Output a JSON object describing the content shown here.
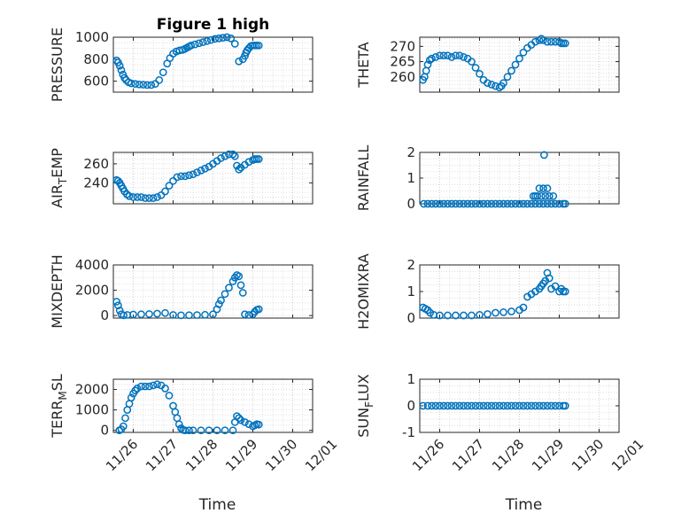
{
  "figure_title": "Figure 1 high",
  "colors": {
    "marker": "#0072BD",
    "axes": "#262626",
    "grid": "#cfcfcf"
  },
  "chart_data": [
    {
      "type": "scatter",
      "title": "Figure 1 high",
      "ylabel": "PRESSURE",
      "ylim": [
        500,
        1000
      ],
      "yticks": [
        600,
        800,
        1000
      ],
      "xlim": [
        0,
        5
      ],
      "xticks": [
        0.5,
        1.5,
        2.5,
        3.5,
        4.5,
        5.5
      ],
      "xticklabels": [],
      "grid": true,
      "x": [
        0.08,
        0.12,
        0.16,
        0.2,
        0.24,
        0.28,
        0.32,
        0.38,
        0.45,
        0.55,
        0.65,
        0.75,
        0.85,
        0.95,
        1.05,
        1.15,
        1.25,
        1.35,
        1.42,
        1.5,
        1.58,
        1.66,
        1.74,
        1.8,
        1.85,
        1.9,
        1.95,
        2.05,
        2.15,
        2.25,
        2.35,
        2.45,
        2.55,
        2.65,
        2.75,
        2.85,
        2.95,
        3.05,
        3.15,
        3.25,
        3.3,
        3.33,
        3.36,
        3.4,
        3.45,
        3.5,
        3.55,
        3.6,
        3.65
      ],
      "y": [
        790,
        770,
        740,
        700,
        660,
        630,
        610,
        590,
        580,
        575,
        570,
        568,
        565,
        565,
        575,
        610,
        680,
        760,
        810,
        850,
        870,
        880,
        885,
        895,
        905,
        915,
        925,
        935,
        945,
        955,
        965,
        975,
        985,
        990,
        995,
        1000,
        990,
        940,
        780,
        800,
        830,
        860,
        880,
        900,
        920,
        925,
        925,
        925,
        925
      ]
    },
    {
      "type": "scatter",
      "title": "",
      "ylabel": "THETA",
      "ylim": [
        255,
        273
      ],
      "yticks": [
        260,
        265,
        270
      ],
      "xlim": [
        0,
        5
      ],
      "xticks": [
        0.5,
        1.5,
        2.5,
        3.5,
        4.5,
        5.5
      ],
      "xticklabels": [],
      "grid": true,
      "x": [
        0.08,
        0.12,
        0.16,
        0.2,
        0.25,
        0.3,
        0.4,
        0.5,
        0.6,
        0.7,
        0.8,
        0.9,
        1.0,
        1.1,
        1.2,
        1.3,
        1.4,
        1.5,
        1.6,
        1.7,
        1.8,
        1.9,
        2.0,
        2.05,
        2.1,
        2.2,
        2.3,
        2.4,
        2.5,
        2.6,
        2.7,
        2.8,
        2.9,
        3.0,
        3.05,
        3.1,
        3.2,
        3.3,
        3.4,
        3.5,
        3.55,
        3.6,
        3.65
      ],
      "y": [
        259,
        260,
        262,
        264,
        265.5,
        266,
        266.5,
        267,
        267,
        267,
        266.5,
        267,
        267,
        266.5,
        266,
        265,
        263,
        261,
        259,
        258,
        257.5,
        257,
        256.5,
        257,
        258,
        260,
        262,
        264,
        266,
        268,
        269.5,
        270.5,
        271.5,
        272,
        272.5,
        272,
        271.5,
        271.5,
        271.5,
        271.5,
        271,
        271,
        271
      ]
    },
    {
      "type": "scatter",
      "title": "",
      "ylabel": "AIR_TEMP",
      "ylim": [
        218,
        272
      ],
      "yticks": [
        240,
        260
      ],
      "xlim": [
        0,
        5
      ],
      "xticks": [
        0.5,
        1.5,
        2.5,
        3.5,
        4.5,
        5.5
      ],
      "xticklabels": [],
      "grid": true,
      "x": [
        0.08,
        0.12,
        0.16,
        0.2,
        0.24,
        0.28,
        0.34,
        0.4,
        0.5,
        0.6,
        0.7,
        0.8,
        0.9,
        1.0,
        1.1,
        1.2,
        1.3,
        1.4,
        1.5,
        1.6,
        1.7,
        1.8,
        1.9,
        2.0,
        2.1,
        2.2,
        2.3,
        2.4,
        2.5,
        2.6,
        2.7,
        2.8,
        2.9,
        3.0,
        3.05,
        3.1,
        3.15,
        3.2,
        3.3,
        3.4,
        3.5,
        3.55,
        3.6,
        3.65
      ],
      "y": [
        243,
        242,
        240,
        237,
        234,
        231,
        228,
        226,
        225,
        225,
        225,
        224,
        224,
        224,
        225,
        227,
        231,
        237,
        242,
        246,
        247,
        247,
        248,
        249,
        251,
        253,
        255,
        257,
        260,
        263,
        266,
        268,
        270,
        270,
        268,
        258,
        254,
        256,
        259,
        262,
        264,
        265,
        265,
        265
      ]
    },
    {
      "type": "scatter",
      "title": "",
      "ylabel": "RAINFALL",
      "ylim": [
        0,
        2
      ],
      "yticks": [
        0,
        1,
        2
      ],
      "xlim": [
        0,
        5
      ],
      "xticks": [
        0.5,
        1.5,
        2.5,
        3.5,
        4.5,
        5.5
      ],
      "xticklabels": [],
      "grid": true,
      "x": [
        0.1,
        0.2,
        0.3,
        0.4,
        0.5,
        0.6,
        0.7,
        0.8,
        0.9,
        1.0,
        1.1,
        1.2,
        1.3,
        1.4,
        1.5,
        1.6,
        1.7,
        1.8,
        1.9,
        2.0,
        2.1,
        2.2,
        2.3,
        2.4,
        2.5,
        2.6,
        2.7,
        2.8,
        2.9,
        3.0,
        3.1,
        3.2,
        3.3,
        3.4,
        3.5,
        3.6,
        3.65,
        2.85,
        2.9,
        2.95,
        3.0,
        3.05,
        3.1,
        3.15,
        3.2,
        3.25,
        3.12,
        3.35
      ],
      "y": [
        0,
        0,
        0,
        0,
        0,
        0,
        0,
        0,
        0,
        0,
        0,
        0,
        0,
        0,
        0,
        0,
        0,
        0,
        0,
        0,
        0,
        0,
        0,
        0,
        0,
        0,
        0,
        0,
        0,
        0,
        0,
        0,
        0,
        0,
        0,
        0,
        0,
        0.3,
        0.3,
        0.3,
        0.6,
        0.3,
        0.6,
        0.3,
        0.6,
        0.3,
        1.9,
        0.3
      ]
    },
    {
      "type": "scatter",
      "title": "",
      "ylabel": "MIXDEPTH",
      "ylim": [
        -200,
        4000
      ],
      "yticks": [
        0,
        2000,
        4000
      ],
      "xlim": [
        0,
        5
      ],
      "xticks": [
        0.5,
        1.5,
        2.5,
        3.5,
        4.5,
        5.5
      ],
      "xticklabels": [],
      "grid": true,
      "x": [
        0.08,
        0.12,
        0.16,
        0.2,
        0.26,
        0.35,
        0.5,
        0.7,
        0.9,
        1.1,
        1.3,
        1.5,
        1.7,
        1.9,
        2.1,
        2.3,
        2.5,
        2.6,
        2.65,
        2.7,
        2.8,
        2.9,
        3.0,
        3.05,
        3.1,
        3.15,
        3.2,
        3.25,
        3.3,
        3.4,
        3.5,
        3.55,
        3.6,
        3.65
      ],
      "y": [
        1100,
        800,
        400,
        100,
        20,
        50,
        80,
        100,
        120,
        150,
        200,
        50,
        20,
        30,
        40,
        60,
        100,
        500,
        900,
        1200,
        1700,
        2200,
        2700,
        3000,
        3200,
        3100,
        2400,
        1800,
        100,
        50,
        100,
        300,
        450,
        500
      ]
    },
    {
      "type": "scatter",
      "title": "",
      "ylabel": "H2OMIXRA",
      "ylim": [
        0,
        2
      ],
      "yticks": [
        0,
        1,
        2
      ],
      "xlim": [
        0,
        5
      ],
      "xticks": [
        0.5,
        1.5,
        2.5,
        3.5,
        4.5,
        5.5
      ],
      "xticklabels": [],
      "grid": true,
      "x": [
        0.08,
        0.14,
        0.2,
        0.26,
        0.35,
        0.5,
        0.7,
        0.9,
        1.1,
        1.3,
        1.5,
        1.7,
        1.9,
        2.1,
        2.3,
        2.5,
        2.6,
        2.7,
        2.8,
        2.9,
        3.0,
        3.05,
        3.1,
        3.15,
        3.2,
        3.25,
        3.3,
        3.4,
        3.5,
        3.55,
        3.6,
        3.65
      ],
      "y": [
        0.4,
        0.35,
        0.3,
        0.2,
        0.12,
        0.1,
        0.1,
        0.1,
        0.1,
        0.1,
        0.12,
        0.15,
        0.2,
        0.22,
        0.25,
        0.3,
        0.4,
        0.8,
        0.9,
        1.0,
        1.1,
        1.2,
        1.3,
        1.4,
        1.7,
        1.5,
        1.1,
        1.2,
        1.0,
        1.1,
        1.0,
        1.0
      ]
    },
    {
      "type": "scatter",
      "title": "",
      "ylabel": "TERR_MSL",
      "ylim": [
        -100,
        2500
      ],
      "yticks": [
        0,
        1000,
        2000
      ],
      "xlim": [
        0,
        5
      ],
      "xticks": [
        0.5,
        1.5,
        2.5,
        3.5,
        4.5,
        5.5
      ],
      "xticklabels": [
        "11/26",
        "11/27",
        "11/28",
        "11/29",
        "11/30",
        "12/01"
      ],
      "xlabel": "Time",
      "grid": true,
      "x": [
        0.15,
        0.2,
        0.25,
        0.3,
        0.35,
        0.4,
        0.45,
        0.5,
        0.55,
        0.6,
        0.7,
        0.8,
        0.9,
        1.0,
        1.1,
        1.2,
        1.3,
        1.4,
        1.5,
        1.55,
        1.6,
        1.65,
        1.7,
        1.75,
        1.8,
        1.9,
        2.0,
        2.2,
        2.4,
        2.6,
        2.8,
        3.0,
        3.05,
        3.1,
        3.15,
        3.2,
        3.3,
        3.4,
        3.5,
        3.55,
        3.6,
        3.65
      ],
      "y": [
        0,
        50,
        200,
        600,
        1000,
        1300,
        1600,
        1800,
        1950,
        2050,
        2150,
        2150,
        2150,
        2200,
        2250,
        2200,
        2050,
        1700,
        1200,
        900,
        600,
        300,
        100,
        20,
        0,
        0,
        0,
        0,
        0,
        0,
        0,
        0,
        400,
        700,
        600,
        500,
        400,
        300,
        200,
        250,
        300,
        280
      ]
    },
    {
      "type": "scatter",
      "title": "",
      "ylabel": "SUN_FLUX",
      "ylim": [
        -1,
        1
      ],
      "yticks": [
        -1,
        0,
        1
      ],
      "xlim": [
        0,
        5
      ],
      "xticks": [
        0.5,
        1.5,
        2.5,
        3.5,
        4.5,
        5.5
      ],
      "xticklabels": [
        "11/26",
        "11/27",
        "11/28",
        "11/29",
        "11/30",
        "12/01"
      ],
      "xlabel": "Time",
      "grid": true,
      "x": [
        0.08,
        0.2,
        0.3,
        0.4,
        0.5,
        0.6,
        0.7,
        0.8,
        0.9,
        1.0,
        1.1,
        1.2,
        1.3,
        1.4,
        1.5,
        1.6,
        1.7,
        1.8,
        1.9,
        2.0,
        2.1,
        2.2,
        2.3,
        2.4,
        2.5,
        2.6,
        2.7,
        2.8,
        2.9,
        3.0,
        3.1,
        3.2,
        3.3,
        3.4,
        3.5,
        3.6,
        3.65
      ],
      "y": [
        0,
        0,
        0,
        0,
        0,
        0,
        0,
        0,
        0,
        0,
        0,
        0,
        0,
        0,
        0,
        0,
        0,
        0,
        0,
        0,
        0,
        0,
        0,
        0,
        0,
        0,
        0,
        0,
        0,
        0,
        0,
        0,
        0,
        0,
        0,
        0,
        0
      ]
    }
  ]
}
